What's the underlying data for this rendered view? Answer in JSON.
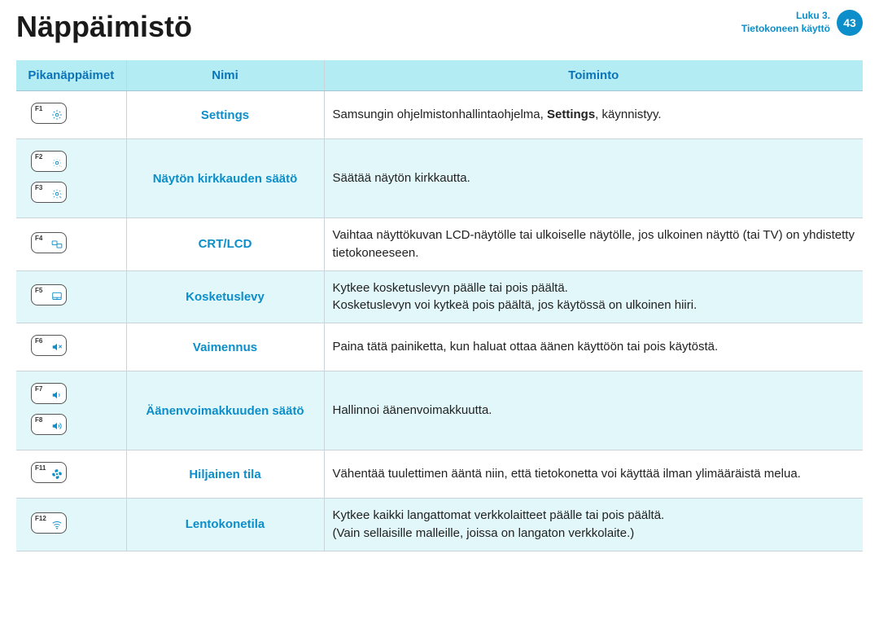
{
  "header": {
    "title": "Näppäimistö",
    "chapter_line1": "Luku 3.",
    "chapter_line2": "Tietokoneen käyttö",
    "chapter_color": "#0b8ec9",
    "page_number": "43",
    "circle_bg": "#0b8ec9"
  },
  "table": {
    "header_bg": "#b4ecf3",
    "header_text_color": "#0b74b8",
    "alt_row_bg": "#e2f7fa",
    "border_color": "#c9d5da",
    "name_text_color": "#0b8ec9",
    "columns": [
      "Pikanäppäimet",
      "Nimi",
      "Toiminto"
    ],
    "rows": [
      {
        "keys": [
          {
            "label": "F1",
            "icon": "gear-icon"
          }
        ],
        "name": "Settings",
        "fn_html": "Samsungin ohjelmistonhallintaohjelma, <b>Settings</b>, käynnistyy."
      },
      {
        "keys": [
          {
            "label": "F2",
            "icon": "brightness-down-icon"
          },
          {
            "label": "F3",
            "icon": "brightness-up-icon"
          }
        ],
        "name": "Näytön kirkkauden säätö",
        "fn_html": "Säätää näytön kirkkautta."
      },
      {
        "keys": [
          {
            "label": "F4",
            "icon": "display-switch-icon"
          }
        ],
        "name": "CRT/LCD",
        "fn_html": "Vaihtaa näyttökuvan LCD-näytölle tai ulkoiselle näytölle, jos ulkoinen näyttö (tai TV) on yhdistetty tietokoneeseen."
      },
      {
        "keys": [
          {
            "label": "F5",
            "icon": "touchpad-icon"
          }
        ],
        "name": "Kosketuslevy",
        "fn_html": "Kytkee kosketuslevyn päälle tai pois päältä.<br>Kosketuslevyn voi kytkeä pois päältä, jos käytössä on ulkoinen hiiri."
      },
      {
        "keys": [
          {
            "label": "F6",
            "icon": "mute-icon"
          }
        ],
        "name": "Vaimennus",
        "fn_html": "Paina tätä painiketta, kun haluat ottaa äänen käyttöön tai pois käytöstä."
      },
      {
        "keys": [
          {
            "label": "F7",
            "icon": "volume-down-icon"
          },
          {
            "label": "F8",
            "icon": "volume-up-icon"
          }
        ],
        "name": "Äänenvoimakkuuden säätö",
        "fn_html": "Hallinnoi äänenvoimakkuutta."
      },
      {
        "keys": [
          {
            "label": "F11",
            "icon": "fan-icon"
          }
        ],
        "name": "Hiljainen tila",
        "fn_html": "Vähentää tuulettimen ääntä niin, että tietokonetta voi käyttää ilman ylimääräistä melua."
      },
      {
        "keys": [
          {
            "label": "F12",
            "icon": "wifi-icon"
          }
        ],
        "name": "Lentokonetila",
        "fn_html": "Kytkee kaikki langattomat verkkolaitteet päälle tai pois päältä.<br>(Vain sellaisille malleille, joissa on langaton verkkolaite.)"
      }
    ]
  },
  "icons": {
    "gear-icon": "<svg viewBox='0 0 24 24'><circle cx='12' cy='12' r='3' class='stroke-blue'/><path class='stroke-blue' d='M12 2v3M12 19v3M2 12h3M19 12h3M4.9 4.9l2.1 2.1M17 17l2.1 2.1M4.9 19.1L7 17M17 7l2.1-2.1'/></svg>",
    "brightness-down-icon": "<svg viewBox='0 0 24 24'><circle cx='12' cy='12' r='3' class='stroke-blue'/><path class='stroke-blue' d='M12 4v1M12 19v1M4 12h1M19 12h1M6 6l.7.7M17.3 17.3l.7.7M6 18l.7-.7M17.3 6.7l.7-.7'/><text x='20' y='22' font-size='8' class='fill-blue'>-</text></svg>",
    "brightness-up-icon": "<svg viewBox='0 0 24 24'><circle cx='12' cy='12' r='3' class='stroke-blue'/><path class='stroke-blue' d='M12 3v2M12 19v2M3 12h2M19 12h2M5 5l1.5 1.5M17.5 17.5L19 19M5 19l1.5-1.5M17.5 6.5L19 5'/><text x='18' y='22' font-size='8' class='fill-blue'>+</text></svg>",
    "display-switch-icon": "<svg viewBox='0 0 24 24'><rect x='2' y='5' width='10' height='8' rx='1' class='stroke-blue'/><rect x='12' y='11' width='10' height='8' rx='1' class='stroke-blue'/></svg>",
    "touchpad-icon": "<svg viewBox='0 0 24 24'><rect x='3' y='4' width='18' height='14' rx='2' class='stroke-blue'/><path class='stroke-blue' d='M3 14h18M12 14v4'/></svg>",
    "mute-icon": "<svg viewBox='0 0 24 24'><path class='fill-blue' d='M3 9v6h4l5 4V5L7 9H3z'/><path class='stroke-blue' d='M16 8l6 6M22 8l-6 6'/></svg>",
    "volume-down-icon": "<svg viewBox='0 0 24 24'><path class='fill-blue' d='M3 9v6h4l5 4V5L7 9H3z'/><path class='stroke-blue' d='M16 9a4 4 0 010 6'/></svg>",
    "volume-up-icon": "<svg viewBox='0 0 24 24'><path class='fill-blue' d='M3 9v6h4l5 4V5L7 9H3z'/><path class='stroke-blue' d='M15 9a4 4 0 010 6M18 6a8 8 0 010 12'/></svg>",
    "fan-icon": "<svg viewBox='0 0 24 24'><circle cx='12' cy='12' r='2' class='fill-blue'/><path class='fill-blue' d='M12 2c3 0 3 4 1 6-1-1-3-1-3 1-4-2-3-7 2-7zM22 12c0 3-4 3-6 1 1-1 1-3-1-3 2-4 7-3 7 2zM12 22c-3 0-3-4-1-6 1 1 3 1 3-1 4 2 3 7-2 7zM2 12c0-3 4-3 6-1-1 1-1 3 1 3-2 4-7 3-7-2z'/></svg>",
    "wifi-icon": "<svg viewBox='0 0 24 24'><path class='stroke-blue' d='M3 9a15 15 0 0118 0M6 13a10 10 0 0112 0M9 17a5 5 0 016 0'/><circle cx='12' cy='20' r='1.5' class='fill-blue'/></svg>"
  }
}
